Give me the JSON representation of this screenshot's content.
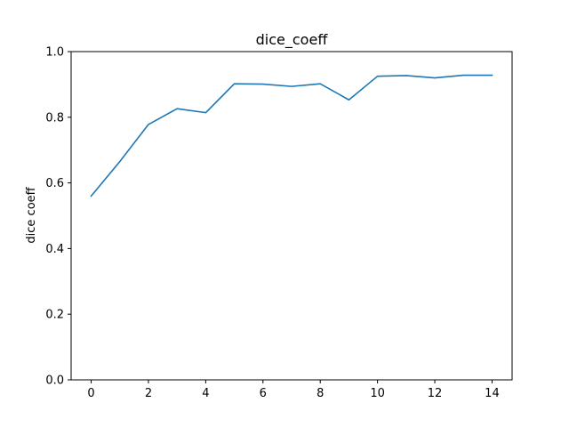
{
  "chart_data": {
    "type": "line",
    "title": "dice_coeff",
    "xlabel": "",
    "ylabel": "dice coeff",
    "x": [
      0,
      1,
      2,
      3,
      4,
      5,
      6,
      7,
      8,
      9,
      10,
      11,
      12,
      13,
      14
    ],
    "series": [
      {
        "values": [
          0.56,
          0.665,
          0.778,
          0.826,
          0.814,
          0.902,
          0.901,
          0.894,
          0.902,
          0.853,
          0.925,
          0.927,
          0.92,
          0.928,
          0.928
        ],
        "color": "#1f77b4"
      }
    ],
    "xlim": [
      -0.7,
      14.7
    ],
    "ylim": [
      0.0,
      1.0
    ],
    "xticks": [
      0,
      2,
      4,
      6,
      8,
      10,
      12,
      14
    ],
    "xtick_labels": [
      "0",
      "2",
      "4",
      "6",
      "8",
      "10",
      "12",
      "14"
    ],
    "yticks": [
      0.0,
      0.2,
      0.4,
      0.6,
      0.8,
      1.0
    ],
    "ytick_labels": [
      "0.0",
      "0.2",
      "0.4",
      "0.6",
      "0.8",
      "1.0"
    ],
    "grid": false,
    "legend": "none"
  }
}
